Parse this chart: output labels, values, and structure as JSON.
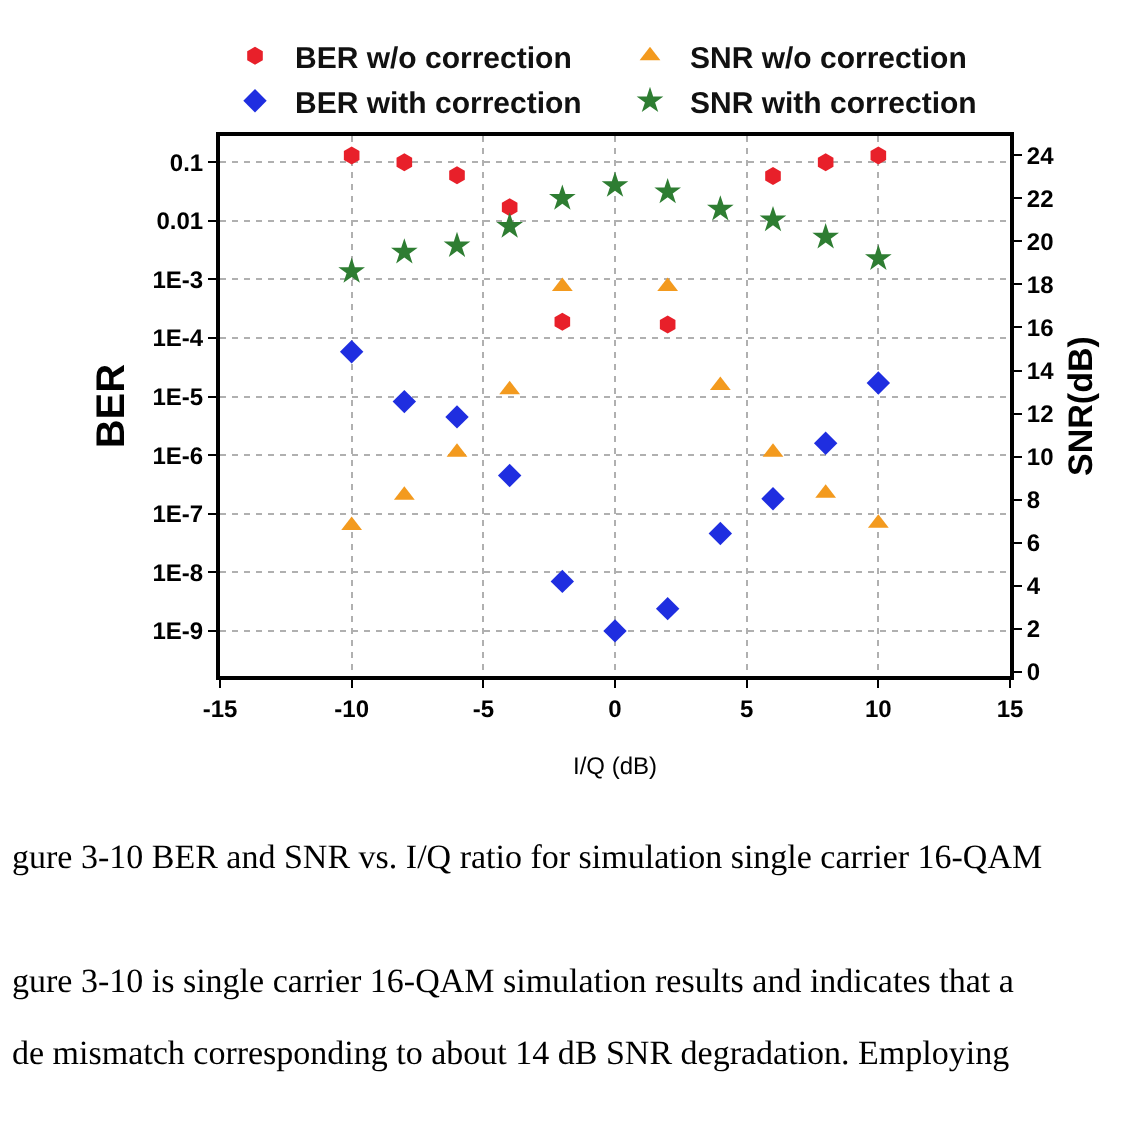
{
  "chart_data": {
    "type": "scatter",
    "xlabel": "I/Q (dB)",
    "ylabel": "BER",
    "y2label": "SNR(dB)",
    "x": [
      -10,
      -8,
      -6,
      -4,
      -2,
      0,
      2,
      4,
      6,
      8,
      10
    ],
    "series": [
      {
        "name": "BER w/o correction",
        "color": "#e8202a",
        "marker": "circle",
        "values": [
          0.13,
          0.1,
          0.06,
          0.017,
          0.00019,
          null,
          0.00017,
          null,
          0.058,
          0.1,
          0.13
        ]
      },
      {
        "name": "SNR w/o correction",
        "color": "#f39a1e",
        "marker": "triangle",
        "axis": "y2",
        "values": [
          6.8,
          8.2,
          10.2,
          13.1,
          17.9,
          null,
          17.9,
          13.3,
          10.2,
          8.3,
          6.9
        ]
      },
      {
        "name": "BER with correction",
        "color": "#1f2ee0",
        "marker": "diamond",
        "values": [
          5.8e-05,
          8.2e-06,
          4.5e-06,
          4.5e-07,
          7e-09,
          1e-09,
          2.4e-09,
          4.6e-08,
          1.8e-07,
          1.6e-06,
          1.7e-05
        ]
      },
      {
        "name": "SNR with correction",
        "color": "#2e7d32",
        "marker": "star",
        "axis": "y2",
        "values": [
          18.6,
          19.5,
          19.8,
          20.7,
          22.0,
          22.6,
          22.3,
          21.5,
          21.0,
          20.2,
          19.2
        ]
      }
    ],
    "log": "y",
    "grid": true,
    "legend": "top",
    "xlim": [
      -15,
      15
    ],
    "xticks": [
      -15,
      -10,
      -5,
      0,
      5,
      10,
      15
    ],
    "ylim": [
      1.7e-10,
      0.28
    ],
    "yticks": [
      {
        "value": 0.1,
        "label": "0.1"
      },
      {
        "value": 0.01,
        "label": "0.01"
      },
      {
        "value": 0.001,
        "label": "1E-3"
      },
      {
        "value": 0.0001,
        "label": "1E-4"
      },
      {
        "value": 1e-05,
        "label": "1E-5"
      },
      {
        "value": 1e-06,
        "label": "1E-6"
      },
      {
        "value": 1e-07,
        "label": "1E-7"
      },
      {
        "value": 1e-08,
        "label": "1E-8"
      },
      {
        "value": 1e-09,
        "label": "1E-9"
      }
    ],
    "y2lim": [
      -0.2,
      24.9
    ],
    "y2ticks": [
      0,
      2,
      4,
      6,
      8,
      10,
      12,
      14,
      16,
      18,
      20,
      22,
      24
    ],
    "annotations": [
      "gure 3-10 BER and SNR vs. I/Q ratio for simulation single carrier 16-QAM",
      "gure 3-10 is single carrier 16-QAM simulation results and indicates that a",
      "de mismatch corresponding to about 14 dB SNR degradation. Employing"
    ]
  }
}
